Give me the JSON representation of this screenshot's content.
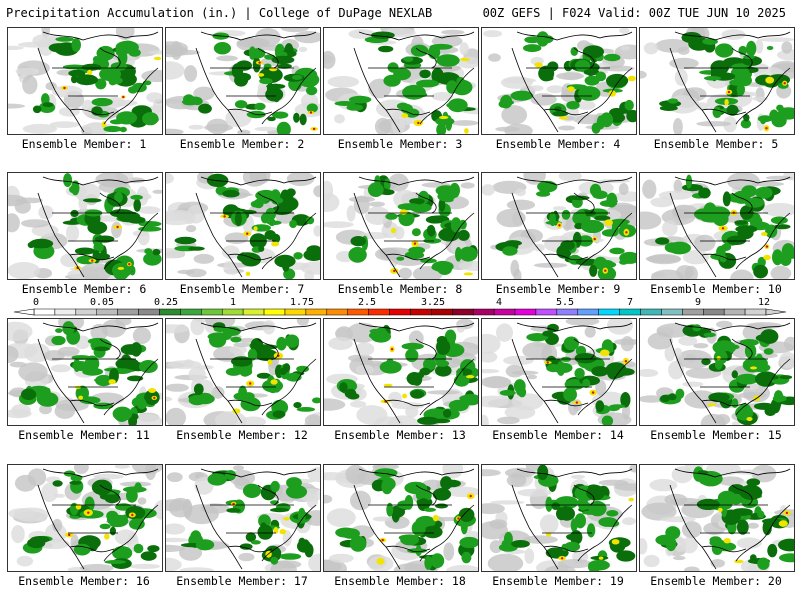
{
  "header": {
    "title_left": "Precipitation Accumulation (in.) | College of DuPage NEXLAB",
    "title_right": "00Z GEFS | F024 Valid: 00Z TUE JUN 10 2025"
  },
  "members": [
    {
      "label": "Ensemble Member: 1"
    },
    {
      "label": "Ensemble Member: 2"
    },
    {
      "label": "Ensemble Member: 3"
    },
    {
      "label": "Ensemble Member: 4"
    },
    {
      "label": "Ensemble Member: 5"
    },
    {
      "label": "Ensemble Member: 6"
    },
    {
      "label": "Ensemble Member: 7"
    },
    {
      "label": "Ensemble Member: 8"
    },
    {
      "label": "Ensemble Member: 9"
    },
    {
      "label": "Ensemble Member: 10"
    },
    {
      "label": "Ensemble Member: 11"
    },
    {
      "label": "Ensemble Member: 12"
    },
    {
      "label": "Ensemble Member: 13"
    },
    {
      "label": "Ensemble Member: 14"
    },
    {
      "label": "Ensemble Member: 15"
    },
    {
      "label": "Ensemble Member: 16"
    },
    {
      "label": "Ensemble Member: 17"
    },
    {
      "label": "Ensemble Member: 18"
    },
    {
      "label": "Ensemble Member: 19"
    },
    {
      "label": "Ensemble Member: 20"
    }
  ],
  "colorbar": {
    "tick_labels": [
      "0",
      "0.05",
      "0.25",
      "1",
      "1.75",
      "2.5",
      "3.25",
      "4",
      "5.5",
      "7",
      "9",
      "12"
    ],
    "colors": [
      "#ffffff",
      "#eeeeee",
      "#d2d2d2",
      "#bcbcbc",
      "#a0a0a0",
      "#8a8a8a",
      "#2e8b2e",
      "#3ca83c",
      "#6cc83a",
      "#9fdc35",
      "#d8f030",
      "#ffff00",
      "#ffd700",
      "#ffb000",
      "#ff8c00",
      "#ff5a00",
      "#ff2a00",
      "#e60000",
      "#c80000",
      "#a80000",
      "#8c0028",
      "#aa0066",
      "#c800a0",
      "#e600dc",
      "#c050ff",
      "#9080ff",
      "#60a0ff",
      "#00d8ff",
      "#00c8c8",
      "#40b8b8",
      "#80c0c0",
      "#a0a0a0",
      "#888888",
      "#b4b4b4",
      "#d2d2d2"
    ]
  },
  "colors": {
    "land_light": "#d4d4d4",
    "green": "#1e9e1e",
    "green_dark": "#0a6e0a",
    "yellow": "#f0e400",
    "red": "#d81010"
  }
}
